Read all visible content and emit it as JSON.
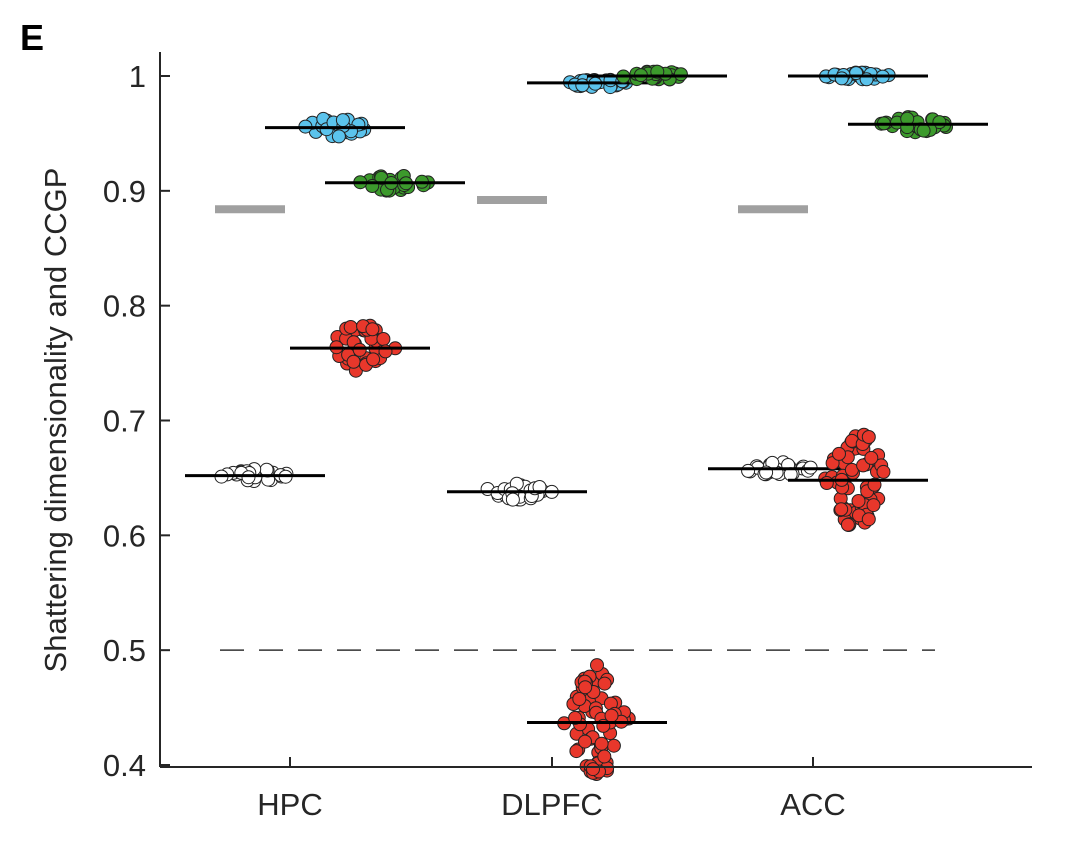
{
  "panel_label": "E",
  "chart_data": {
    "type": "scatter",
    "title": "",
    "xlabel": "",
    "ylabel": "Shattering dimensionality and CCGP",
    "ylim": [
      0.4,
      1.0
    ],
    "yticks": [
      {
        "value": 0.4,
        "label": "0.4"
      },
      {
        "value": 0.5,
        "label": "0.5"
      },
      {
        "value": 0.6,
        "label": "0.6"
      },
      {
        "value": 0.7,
        "label": "0.7"
      },
      {
        "value": 0.8,
        "label": "0.8"
      },
      {
        "value": 0.9,
        "label": "0.9"
      },
      {
        "value": 1.0,
        "label": "1"
      }
    ],
    "categories": [
      "HPC",
      "DLPFC",
      "ACC"
    ],
    "chance_level": 0.5,
    "colors": {
      "white": "#ffffff",
      "blue": "#5bc3ec",
      "green": "#3c9a2c",
      "red": "#e8372b",
      "gray": "#a0a0a0",
      "median": "#000000"
    },
    "series": [
      {
        "color": "white",
        "values": [
          0.652,
          0.638,
          0.658
        ]
      },
      {
        "color": "blue",
        "values": [
          0.955,
          0.994,
          1.0
        ]
      },
      {
        "color": "green",
        "values": [
          0.907,
          1.0,
          0.958
        ]
      },
      {
        "color": "red",
        "values": [
          0.763,
          0.437,
          0.648
        ]
      },
      {
        "color": "gray",
        "values": [
          0.884,
          0.892,
          0.884
        ]
      }
    ],
    "outliers": [
      {
        "category": "DLPFC",
        "color": "red",
        "value": 0.487
      }
    ]
  }
}
